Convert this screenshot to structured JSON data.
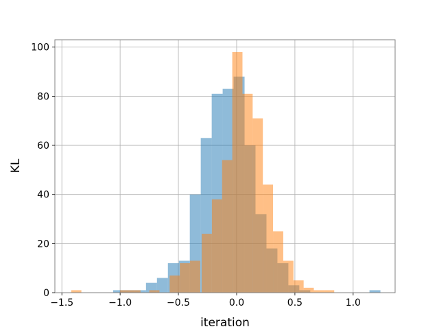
{
  "chart_data": {
    "type": "histogram",
    "title": "",
    "xlabel": "iteration",
    "ylabel": "KL",
    "xlim": [
      -1.56,
      1.36
    ],
    "ylim": [
      0,
      103
    ],
    "grid": true,
    "xticks": [
      -1.5,
      -1.0,
      -0.5,
      0.0,
      0.5,
      1.0
    ],
    "xtick_labels": [
      "−1.5",
      "−1.0",
      "−0.5",
      "0.0",
      "0.5",
      "1.0"
    ],
    "yticks": [
      0,
      20,
      40,
      60,
      80,
      100
    ],
    "ytick_labels": [
      "0",
      "20",
      "40",
      "60",
      "80",
      "100"
    ],
    "series": [
      {
        "color": "#1f77b4",
        "opacity": 0.5,
        "bin_width": 0.094,
        "bins": [
          {
            "x0": -1.06,
            "count": 1
          },
          {
            "x0": -0.966,
            "count": 1
          },
          {
            "x0": -0.872,
            "count": 1
          },
          {
            "x0": -0.778,
            "count": 4
          },
          {
            "x0": -0.684,
            "count": 6
          },
          {
            "x0": -0.59,
            "count": 12
          },
          {
            "x0": -0.496,
            "count": 13
          },
          {
            "x0": -0.402,
            "count": 40
          },
          {
            "x0": -0.308,
            "count": 63
          },
          {
            "x0": -0.214,
            "count": 81
          },
          {
            "x0": -0.12,
            "count": 83
          },
          {
            "x0": -0.026,
            "count": 88
          },
          {
            "x0": 0.068,
            "count": 60
          },
          {
            "x0": 0.162,
            "count": 32
          },
          {
            "x0": 0.256,
            "count": 18
          },
          {
            "x0": 0.35,
            "count": 12
          },
          {
            "x0": 0.444,
            "count": 3
          },
          {
            "x0": 0.538,
            "count": 1
          },
          {
            "x0": 1.14,
            "count": 1
          }
        ]
      },
      {
        "color": "#ff7f0e",
        "opacity": 0.5,
        "bin_width": 0.0875,
        "bins": [
          {
            "x0": -1.42,
            "count": 1
          },
          {
            "x0": -1.0,
            "count": 1
          },
          {
            "x0": -0.9125,
            "count": 1
          },
          {
            "x0": -0.75,
            "count": 1
          },
          {
            "x0": -0.575,
            "count": 7
          },
          {
            "x0": -0.4875,
            "count": 12
          },
          {
            "x0": -0.4,
            "count": 13
          },
          {
            "x0": -0.3,
            "count": 24
          },
          {
            "x0": -0.2125,
            "count": 38
          },
          {
            "x0": -0.125,
            "count": 54
          },
          {
            "x0": -0.0375,
            "count": 98
          },
          {
            "x0": 0.05,
            "count": 81
          },
          {
            "x0": 0.1375,
            "count": 71
          },
          {
            "x0": 0.225,
            "count": 44
          },
          {
            "x0": 0.3125,
            "count": 25
          },
          {
            "x0": 0.4,
            "count": 13
          },
          {
            "x0": 0.4875,
            "count": 5
          },
          {
            "x0": 0.575,
            "count": 2
          },
          {
            "x0": 0.6625,
            "count": 1
          },
          {
            "x0": 0.75,
            "count": 1
          }
        ]
      }
    ]
  }
}
